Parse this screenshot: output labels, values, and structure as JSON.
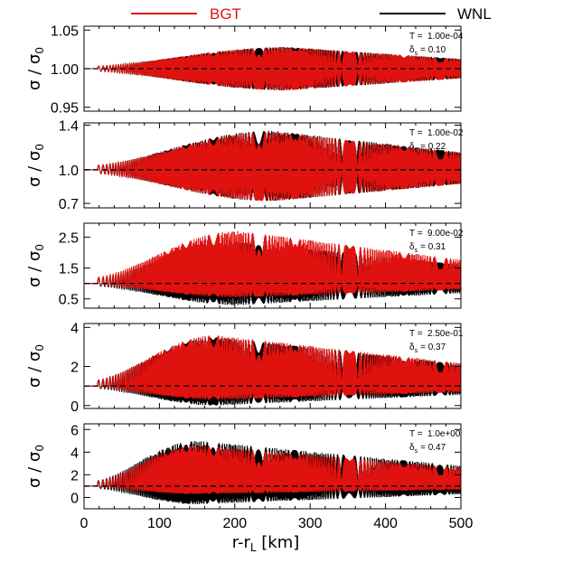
{
  "chart_data": {
    "type": "line",
    "xlabel": "r-r",
    "xlabel_sub": "L",
    "xlabel_unit": " [km]",
    "ylabel": "σ / σ",
    "ylabel_sub": "0",
    "xlim": [
      0,
      500
    ],
    "x_ticks": [
      "0",
      "100",
      "200",
      "300",
      "400",
      "500"
    ],
    "legend": {
      "placement": "top",
      "entries": [
        {
          "name": "BGT",
          "color": "#e0120f"
        },
        {
          "name": "WNL",
          "color": "#000000"
        }
      ]
    },
    "reference_line": {
      "y": 1.0,
      "style": "dashed",
      "color": "#000000"
    },
    "panels": [
      {
        "t_label": "T =",
        "t_value": "1.00e-04",
        "d_label": "δ",
        "d_sub": "s",
        "d_value": "= 0.10",
        "ylim": [
          0.945,
          1.055
        ],
        "y_ticks": [
          {
            "v": 0.95,
            "label": "0.95"
          },
          {
            "v": 1.0,
            "label": "1.00"
          },
          {
            "v": 1.05,
            "label": "1.05"
          }
        ],
        "envelope_peak": {
          "x": 270,
          "y": 1.028
        },
        "series": [
          {
            "name": "BGT",
            "peak_sigma": 1.028,
            "trough_sigma": 0.972
          },
          {
            "name": "WNL",
            "peak_sigma": 1.028,
            "trough_sigma": 0.972
          }
        ]
      },
      {
        "t_label": "T =",
        "t_value": "1.00e-02",
        "d_label": "δ",
        "d_sub": "s",
        "d_value": "= 0.22",
        "ylim": [
          0.66,
          1.42
        ],
        "y_ticks": [
          {
            "v": 0.7,
            "label": "0.7"
          },
          {
            "v": 1.0,
            "label": "1.0"
          },
          {
            "v": 1.4,
            "label": "1.4"
          }
        ],
        "envelope_peak": {
          "x": 250,
          "y": 1.35
        },
        "series": [
          {
            "name": "BGT",
            "peak_sigma": 1.34,
            "trough_sigma": 0.72
          },
          {
            "name": "WNL",
            "peak_sigma": 1.35,
            "trough_sigma": 0.72
          }
        ]
      },
      {
        "t_label": "T =",
        "t_value": "9.00e-02",
        "d_label": "δ",
        "d_sub": "s",
        "d_value": "= 0.31",
        "ylim": [
          0.2,
          2.95
        ],
        "y_ticks": [
          {
            "v": 0.5,
            "label": "0.5"
          },
          {
            "v": 1.5,
            "label": "1.5"
          },
          {
            "v": 2.5,
            "label": "2.5"
          }
        ],
        "envelope_peak": {
          "x": 205,
          "y": 2.7
        },
        "series": [
          {
            "name": "BGT",
            "peak_sigma": 2.7,
            "trough_sigma": 0.55
          },
          {
            "name": "WNL",
            "peak_sigma": 2.35,
            "trough_sigma": 0.3
          }
        ]
      },
      {
        "t_label": "T =",
        "t_value": "2.50e-01",
        "d_label": "δ",
        "d_sub": "s",
        "d_value": "= 0.37",
        "ylim": [
          -0.15,
          4.2
        ],
        "y_ticks": [
          {
            "v": 0,
            "label": "0"
          },
          {
            "v": 2,
            "label": "2"
          },
          {
            "v": 4,
            "label": "4"
          }
        ],
        "envelope_peak": {
          "x": 175,
          "y": 3.6
        },
        "series": [
          {
            "name": "BGT",
            "peak_sigma": 3.6,
            "trough_sigma": 0.3
          },
          {
            "name": "WNL",
            "peak_sigma": 3.5,
            "trough_sigma": 0.0
          }
        ]
      },
      {
        "t_label": "T =",
        "t_value": "1.0e+00",
        "d_label": "δ",
        "d_sub": "s",
        "d_value": "= 0.47",
        "ylim": [
          -1.0,
          6.5
        ],
        "y_ticks": [
          {
            "v": 0,
            "label": "0"
          },
          {
            "v": 2,
            "label": "2"
          },
          {
            "v": 4,
            "label": "4"
          },
          {
            "v": 6,
            "label": "6"
          }
        ],
        "envelope_peak": {
          "x": 150,
          "y": 5.0
        },
        "series": [
          {
            "name": "BGT",
            "peak_sigma": 4.6,
            "trough_sigma": 0.3
          },
          {
            "name": "WNL",
            "peak_sigma": 5.0,
            "trough_sigma": -0.6
          }
        ]
      }
    ]
  }
}
